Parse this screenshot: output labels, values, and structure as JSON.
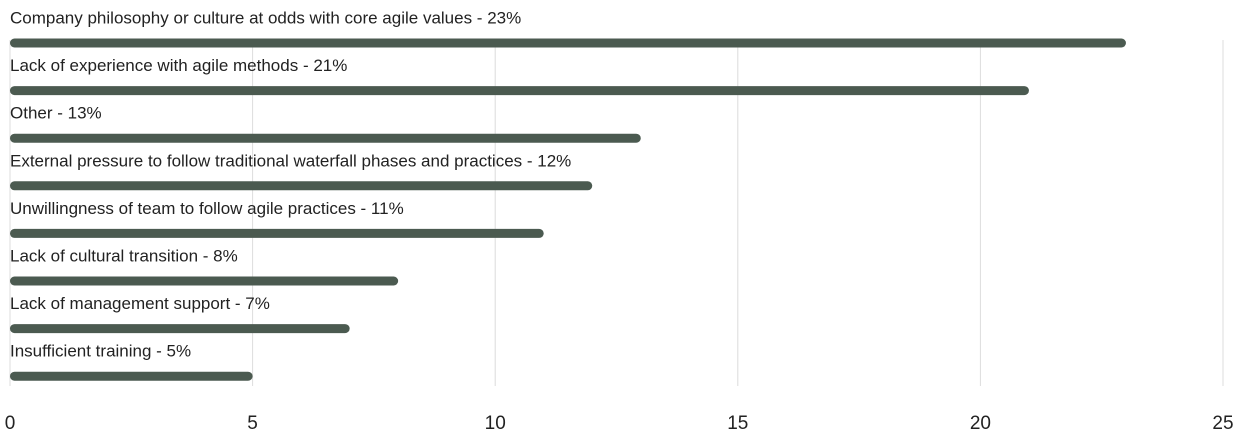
{
  "chart_data": {
    "type": "barh",
    "categories": [
      "Company philosophy or culture at odds with core agile values - 23%",
      "Lack of experience with agile methods - 21%",
      "Other - 13%",
      "External pressure to follow traditional waterfall phases and practices - 12%",
      "Unwillingness of team to follow agile practices - 11%",
      "Lack of cultural transition - 8%",
      "Lack of management support - 7%",
      "Insufficient training - 5%"
    ],
    "values": [
      23,
      21,
      13,
      12,
      11,
      8,
      7,
      5
    ],
    "color": "#4b5a50",
    "xlim": [
      0,
      25
    ],
    "xticks": [
      0,
      5,
      10,
      15,
      20,
      25
    ],
    "grid": true
  }
}
